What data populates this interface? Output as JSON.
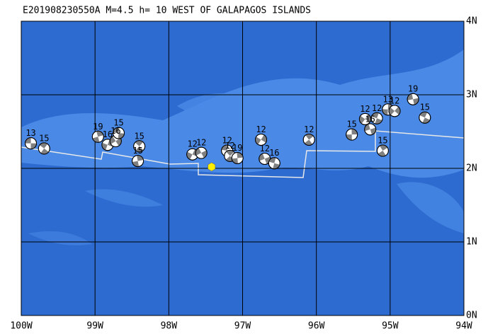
{
  "chart_data": {
    "type": "map",
    "title": "E201908230550A M=4.5 h= 10 WEST OF GALAPAGOS ISLANDS",
    "xlim": [
      -100,
      -94
    ],
    "ylim": [
      0,
      4
    ],
    "xticks": [
      {
        "value": -100,
        "label": "100W"
      },
      {
        "value": -99,
        "label": "99W"
      },
      {
        "value": -98,
        "label": "98W"
      },
      {
        "value": -97,
        "label": "97W"
      },
      {
        "value": -96,
        "label": "96W"
      },
      {
        "value": -95,
        "label": "95W"
      },
      {
        "value": -94,
        "label": "94W"
      }
    ],
    "yticks": [
      {
        "value": 0,
        "label": "0N"
      },
      {
        "value": 1,
        "label": "1N"
      },
      {
        "value": 2,
        "label": "2N"
      },
      {
        "value": 3,
        "label": "3N"
      },
      {
        "value": 4,
        "label": "4N"
      }
    ],
    "grid": true,
    "epicenter": {
      "lon": -97.42,
      "lat": 2.02,
      "color": "#ffee00"
    },
    "events": [
      {
        "lon": -99.87,
        "lat": 2.34,
        "depth": 13
      },
      {
        "lon": -99.69,
        "lat": 2.27,
        "depth": 15
      },
      {
        "lon": -98.96,
        "lat": 2.43,
        "depth": 19
      },
      {
        "lon": -98.83,
        "lat": 2.32,
        "depth": 16
      },
      {
        "lon": -98.72,
        "lat": 2.37,
        "depth": 16
      },
      {
        "lon": -98.68,
        "lat": 2.48,
        "depth": 15
      },
      {
        "lon": -98.4,
        "lat": 2.3,
        "depth": 15
      },
      {
        "lon": -98.42,
        "lat": 2.1,
        "depth": 15
      },
      {
        "lon": -97.68,
        "lat": 2.19,
        "depth": 12
      },
      {
        "lon": -97.56,
        "lat": 2.21,
        "depth": 12
      },
      {
        "lon": -97.21,
        "lat": 2.24,
        "depth": 12
      },
      {
        "lon": -97.17,
        "lat": 2.17,
        "depth": 12
      },
      {
        "lon": -97.07,
        "lat": 2.14,
        "depth": 19
      },
      {
        "lon": -96.75,
        "lat": 2.39,
        "depth": 12
      },
      {
        "lon": -96.7,
        "lat": 2.13,
        "depth": 12
      },
      {
        "lon": -96.57,
        "lat": 2.07,
        "depth": 16
      },
      {
        "lon": -96.1,
        "lat": 2.39,
        "depth": 12
      },
      {
        "lon": -95.52,
        "lat": 2.46,
        "depth": 15
      },
      {
        "lon": -95.34,
        "lat": 2.67,
        "depth": 12
      },
      {
        "lon": -95.27,
        "lat": 2.53,
        "depth": 15
      },
      {
        "lon": -95.18,
        "lat": 2.68,
        "depth": 12
      },
      {
        "lon": -95.1,
        "lat": 2.24,
        "depth": 15
      },
      {
        "lon": -95.03,
        "lat": 2.8,
        "depth": 13
      },
      {
        "lon": -94.94,
        "lat": 2.78,
        "depth": 12
      },
      {
        "lon": -94.69,
        "lat": 2.94,
        "depth": 19
      },
      {
        "lon": -94.53,
        "lat": 2.69,
        "depth": 15
      }
    ],
    "colors": {
      "ocean": "#2e6bd0",
      "shallow": "#4a8ae6",
      "boundary": "#e8e8e8",
      "compression": "#808080"
    }
  }
}
